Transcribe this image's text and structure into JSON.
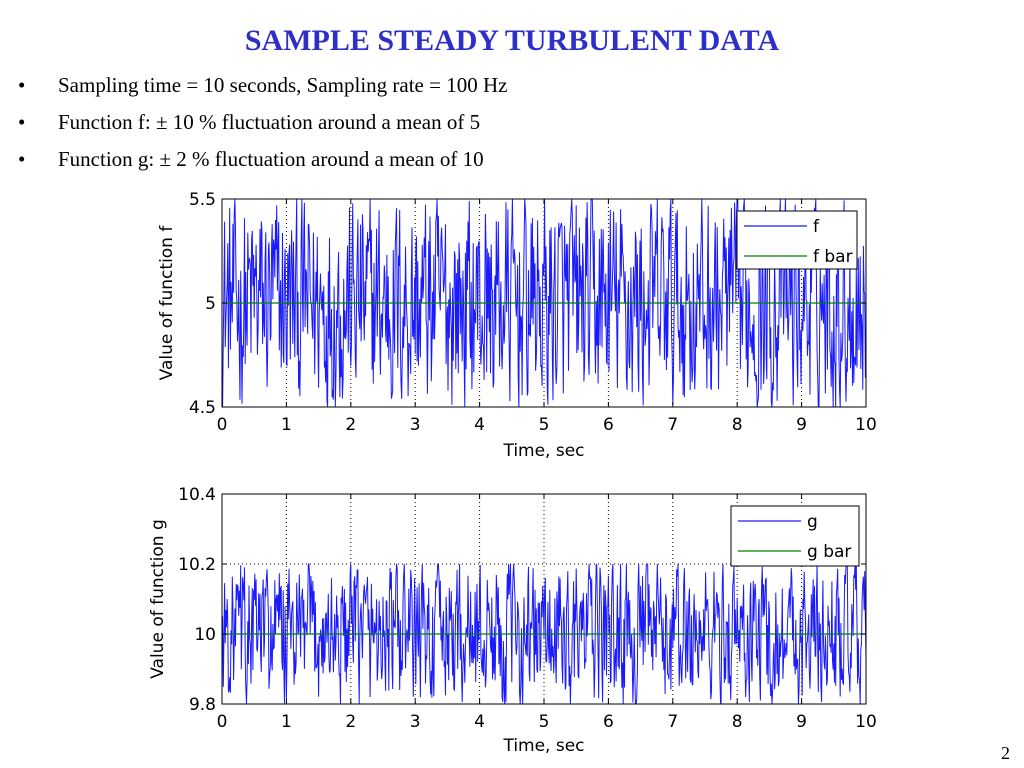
{
  "title": "SAMPLE STEADY TURBULENT DATA",
  "bullets": [
    "Sampling time = 10 seconds, Sampling rate = 100 Hz",
    "Function f: ± 10 % fluctuation around a mean of 5",
    "Function g: ± 2 % fluctuation around a mean of 10"
  ],
  "bullet_glyph": "•",
  "page_number": "2",
  "colors": {
    "title": "#2e2ec8",
    "signal": "#1a1aff",
    "mean": "#008000"
  },
  "chart_data": [
    {
      "type": "line",
      "xlabel": "Time, sec",
      "ylabel": "Value of function f",
      "xlim": [
        0,
        10
      ],
      "ylim": [
        4.5,
        5.5
      ],
      "xticks": [
        0,
        1,
        2,
        3,
        4,
        5,
        6,
        7,
        8,
        9,
        10
      ],
      "yticks": [
        4.5,
        5,
        5.5
      ],
      "ytick_labels": [
        "4.5",
        "5",
        "5.5"
      ],
      "grid": true,
      "legend_position": "top-right",
      "series": [
        {
          "name": "f",
          "color": "#1a1aff",
          "mean": 5,
          "amplitude": 0.5,
          "sample_rate_hz": 100,
          "duration_s": 10,
          "style": "random-fluctuation"
        },
        {
          "name": "f bar",
          "color": "#008000",
          "x": [
            0,
            10
          ],
          "y": [
            5,
            5
          ]
        }
      ]
    },
    {
      "type": "line",
      "xlabel": "Time, sec",
      "ylabel": "Value of function g",
      "xlim": [
        0,
        10
      ],
      "ylim": [
        9.8,
        10.4
      ],
      "xticks": [
        0,
        1,
        2,
        3,
        4,
        5,
        6,
        7,
        8,
        9,
        10
      ],
      "yticks": [
        9.8,
        10,
        10.2,
        10.4
      ],
      "ytick_labels": [
        "9.8",
        "10",
        "10.2",
        "10.4"
      ],
      "grid": true,
      "legend_position": "top-right",
      "series": [
        {
          "name": "g",
          "color": "#1a1aff",
          "mean": 10,
          "amplitude": 0.2,
          "sample_rate_hz": 100,
          "duration_s": 10,
          "style": "random-fluctuation"
        },
        {
          "name": "g bar",
          "color": "#008000",
          "x": [
            0,
            10
          ],
          "y": [
            10,
            10
          ]
        }
      ]
    }
  ]
}
